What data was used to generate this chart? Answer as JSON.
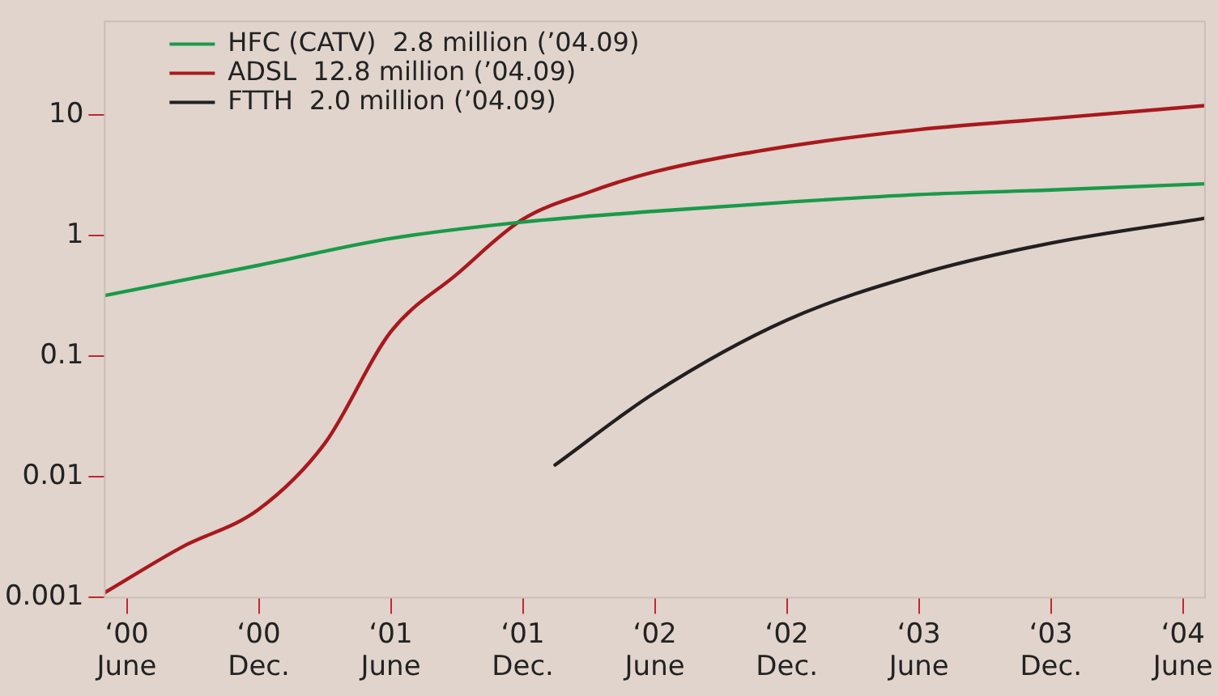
{
  "chart_data": {
    "type": "line",
    "log": "y",
    "legend": "top left",
    "grid": false,
    "marker": "none",
    "line_style": "solid",
    "xlim": [
      "2000-05",
      "2004-07"
    ],
    "xticks": [
      {
        "value": "2000-06",
        "label": "‘00 June"
      },
      {
        "value": "2000-12",
        "label": "‘00 Dec."
      },
      {
        "value": "2001-06",
        "label": "‘01 June"
      },
      {
        "value": "2001-12",
        "label": "‘01 Dec."
      },
      {
        "value": "2002-06",
        "label": "‘02 June"
      },
      {
        "value": "2002-12",
        "label": "‘02 Dec."
      },
      {
        "value": "2003-06",
        "label": "‘03 June"
      },
      {
        "value": "2003-12",
        "label": "‘03 Dec."
      },
      {
        "value": "2004-06",
        "label": "‘04 June"
      }
    ],
    "ylim": [
      0.001,
      60
    ],
    "yticks": [
      0.001,
      0.01,
      0.1,
      1,
      10
    ],
    "series": [
      {
        "name": "HFC (CATV)  2.8 million (’04.09)",
        "color": "#1a9a4a",
        "x": [
          "2000-05",
          "2000-12",
          "2001-06",
          "2001-12",
          "2002-06",
          "2002-12",
          "2003-06",
          "2003-12",
          "2004-07"
        ],
        "values": [
          0.32,
          0.57,
          0.95,
          1.3,
          1.6,
          1.9,
          2.2,
          2.4,
          2.7
        ]
      },
      {
        "name": "ADSL  12.8 million (’04.09)",
        "color": "#a8191e",
        "x": [
          "2000-05",
          "2000-08-15",
          "2000-12",
          "2001-03",
          "2001-06",
          "2001-09",
          "2001-12",
          "2002-03",
          "2002-06",
          "2002-12",
          "2003-06",
          "2003-12",
          "2004-07"
        ],
        "values": [
          0.0011,
          0.0026,
          0.0054,
          0.019,
          0.16,
          0.48,
          1.37,
          2.3,
          3.4,
          5.5,
          7.6,
          9.4,
          12
        ]
      },
      {
        "name": "FTTH  2.0 million (’04.09)",
        "color": "#231f20",
        "x": [
          "2002-01-15",
          "2002-06",
          "2002-12",
          "2003-06",
          "2003-12",
          "2004-07"
        ],
        "values": [
          0.0126,
          0.05,
          0.2,
          0.48,
          0.87,
          1.4
        ]
      }
    ]
  }
}
